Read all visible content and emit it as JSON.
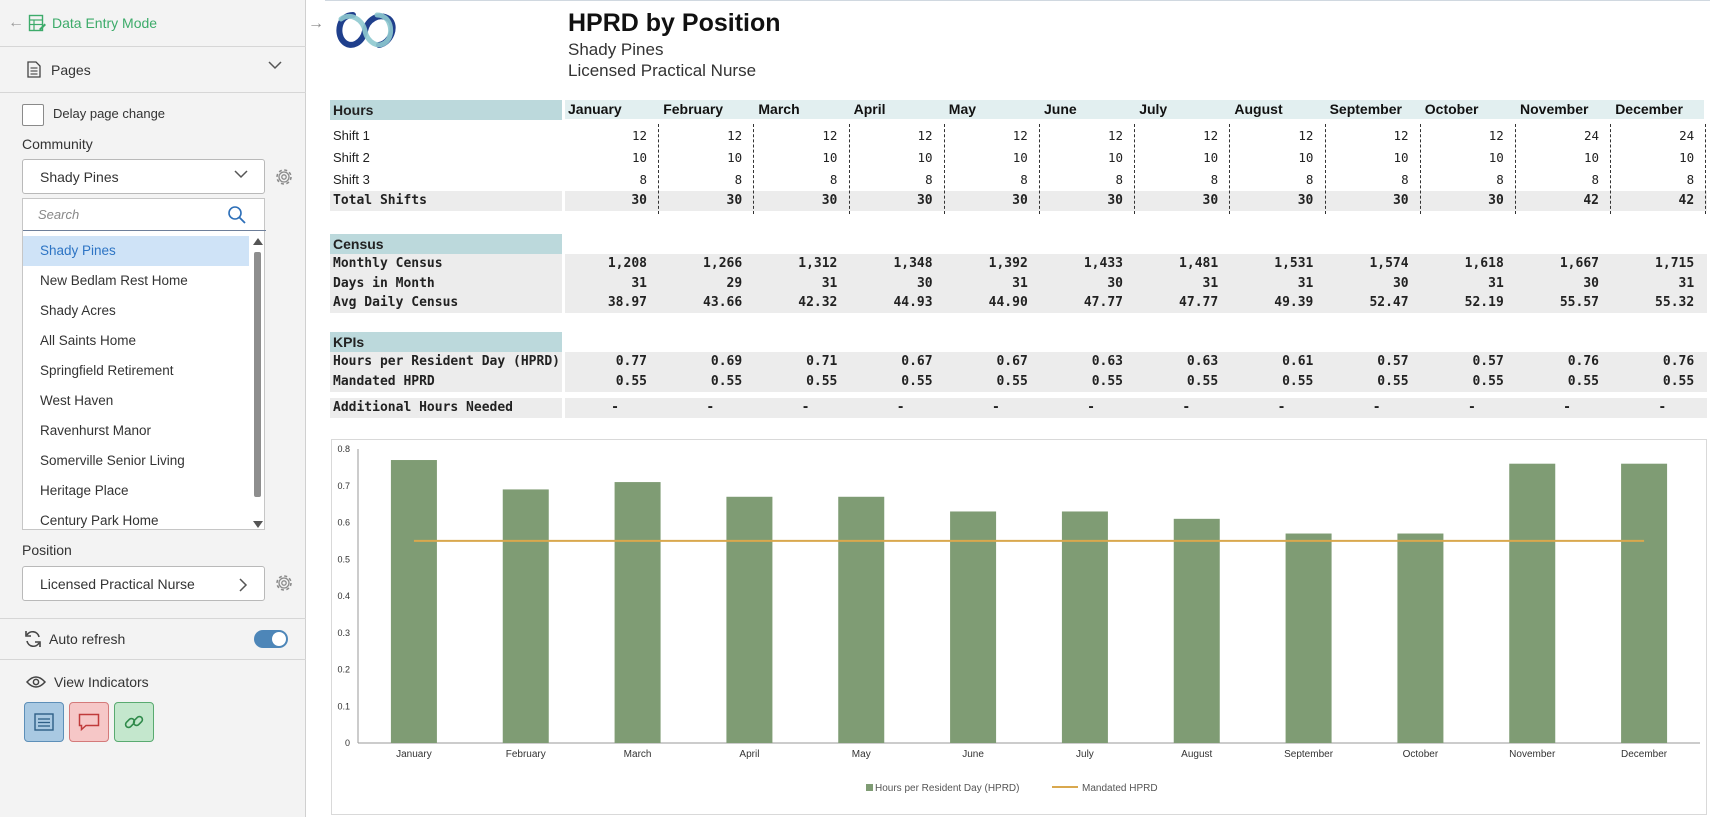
{
  "sidebar": {
    "mode_label": "Data Entry Mode",
    "pages_label": "Pages",
    "delay_label": "Delay page change",
    "community_label": "Community",
    "community_value": "Shady Pines",
    "search_placeholder": "Search",
    "communities": [
      "Shady Pines",
      "New Bedlam Rest Home",
      "Shady Acres",
      "All Saints Home",
      "Springfield Retirement",
      "West Haven",
      "Ravenhurst Manor",
      "Somerville Senior Living",
      "Heritage Place",
      "Century Park Home"
    ],
    "position_label": "Position",
    "position_value": "Licensed Practical Nurse",
    "auto_refresh_label": "Auto refresh",
    "auto_refresh_on": true,
    "view_indicators_label": "View Indicators"
  },
  "report": {
    "title": "HPRD by Position",
    "community": "Shady Pines",
    "position": "Licensed Practical Nurse",
    "months": [
      "January",
      "February",
      "March",
      "April",
      "May",
      "June",
      "July",
      "August",
      "September",
      "October",
      "November",
      "December"
    ],
    "hours": {
      "header": "Hours",
      "rows": [
        {
          "label": "Shift 1",
          "values": [
            "12",
            "12",
            "12",
            "12",
            "12",
            "12",
            "12",
            "12",
            "12",
            "12",
            "24",
            "24"
          ]
        },
        {
          "label": "Shift 2",
          "values": [
            "10",
            "10",
            "10",
            "10",
            "10",
            "10",
            "10",
            "10",
            "10",
            "10",
            "10",
            "10"
          ]
        },
        {
          "label": "Shift 3",
          "values": [
            "8",
            "8",
            "8",
            "8",
            "8",
            "8",
            "8",
            "8",
            "8",
            "8",
            "8",
            "8"
          ]
        },
        {
          "label": "Total Shifts",
          "values": [
            "30",
            "30",
            "30",
            "30",
            "30",
            "30",
            "30",
            "30",
            "30",
            "30",
            "42",
            "42"
          ]
        }
      ]
    },
    "census": {
      "header": "Census",
      "rows": [
        {
          "label": "Monthly Census",
          "values": [
            "1,208",
            "1,266",
            "1,312",
            "1,348",
            "1,392",
            "1,433",
            "1,481",
            "1,531",
            "1,574",
            "1,618",
            "1,667",
            "1,715"
          ]
        },
        {
          "label": "Days in Month",
          "values": [
            "31",
            "29",
            "31",
            "30",
            "31",
            "30",
            "31",
            "31",
            "30",
            "31",
            "30",
            "31"
          ]
        },
        {
          "label": "Avg Daily Census",
          "values": [
            "38.97",
            "43.66",
            "42.32",
            "44.93",
            "44.90",
            "47.77",
            "47.77",
            "49.39",
            "52.47",
            "52.19",
            "55.57",
            "55.32"
          ]
        }
      ]
    },
    "kpis": {
      "header": "KPIs",
      "rows": [
        {
          "label": "Hours per Resident Day (HPRD)",
          "values": [
            "0.77",
            "0.69",
            "0.71",
            "0.67",
            "0.67",
            "0.63",
            "0.63",
            "0.61",
            "0.57",
            "0.57",
            "0.76",
            "0.76"
          ]
        },
        {
          "label": "Mandated HPRD",
          "values": [
            "0.55",
            "0.55",
            "0.55",
            "0.55",
            "0.55",
            "0.55",
            "0.55",
            "0.55",
            "0.55",
            "0.55",
            "0.55",
            "0.55"
          ]
        }
      ],
      "additional": {
        "label": "Additional Hours Needed",
        "values": [
          "-",
          "-",
          "-",
          "-",
          "-",
          "-",
          "-",
          "-",
          "-",
          "-",
          "-",
          "-"
        ]
      }
    }
  },
  "chart_data": {
    "type": "bar",
    "categories": [
      "January",
      "February",
      "March",
      "April",
      "May",
      "June",
      "July",
      "August",
      "September",
      "October",
      "November",
      "December"
    ],
    "series": [
      {
        "name": "Hours per Resident Day (HPRD)",
        "type": "bar",
        "color": "#7f9c74",
        "values": [
          0.77,
          0.69,
          0.71,
          0.67,
          0.67,
          0.63,
          0.63,
          0.61,
          0.57,
          0.57,
          0.76,
          0.76
        ]
      },
      {
        "name": "Mandated HPRD",
        "type": "line",
        "color": "#d9a84e",
        "values": [
          0.55,
          0.55,
          0.55,
          0.55,
          0.55,
          0.55,
          0.55,
          0.55,
          0.55,
          0.55,
          0.55,
          0.55
        ]
      }
    ],
    "ylim": [
      0,
      0.8
    ],
    "yticks": [
      "0",
      "0.1",
      "0.2",
      "0.3",
      "0.4",
      "0.5",
      "0.6",
      "0.7",
      "0.8"
    ],
    "legend_position": "bottom-center",
    "grid": false
  }
}
